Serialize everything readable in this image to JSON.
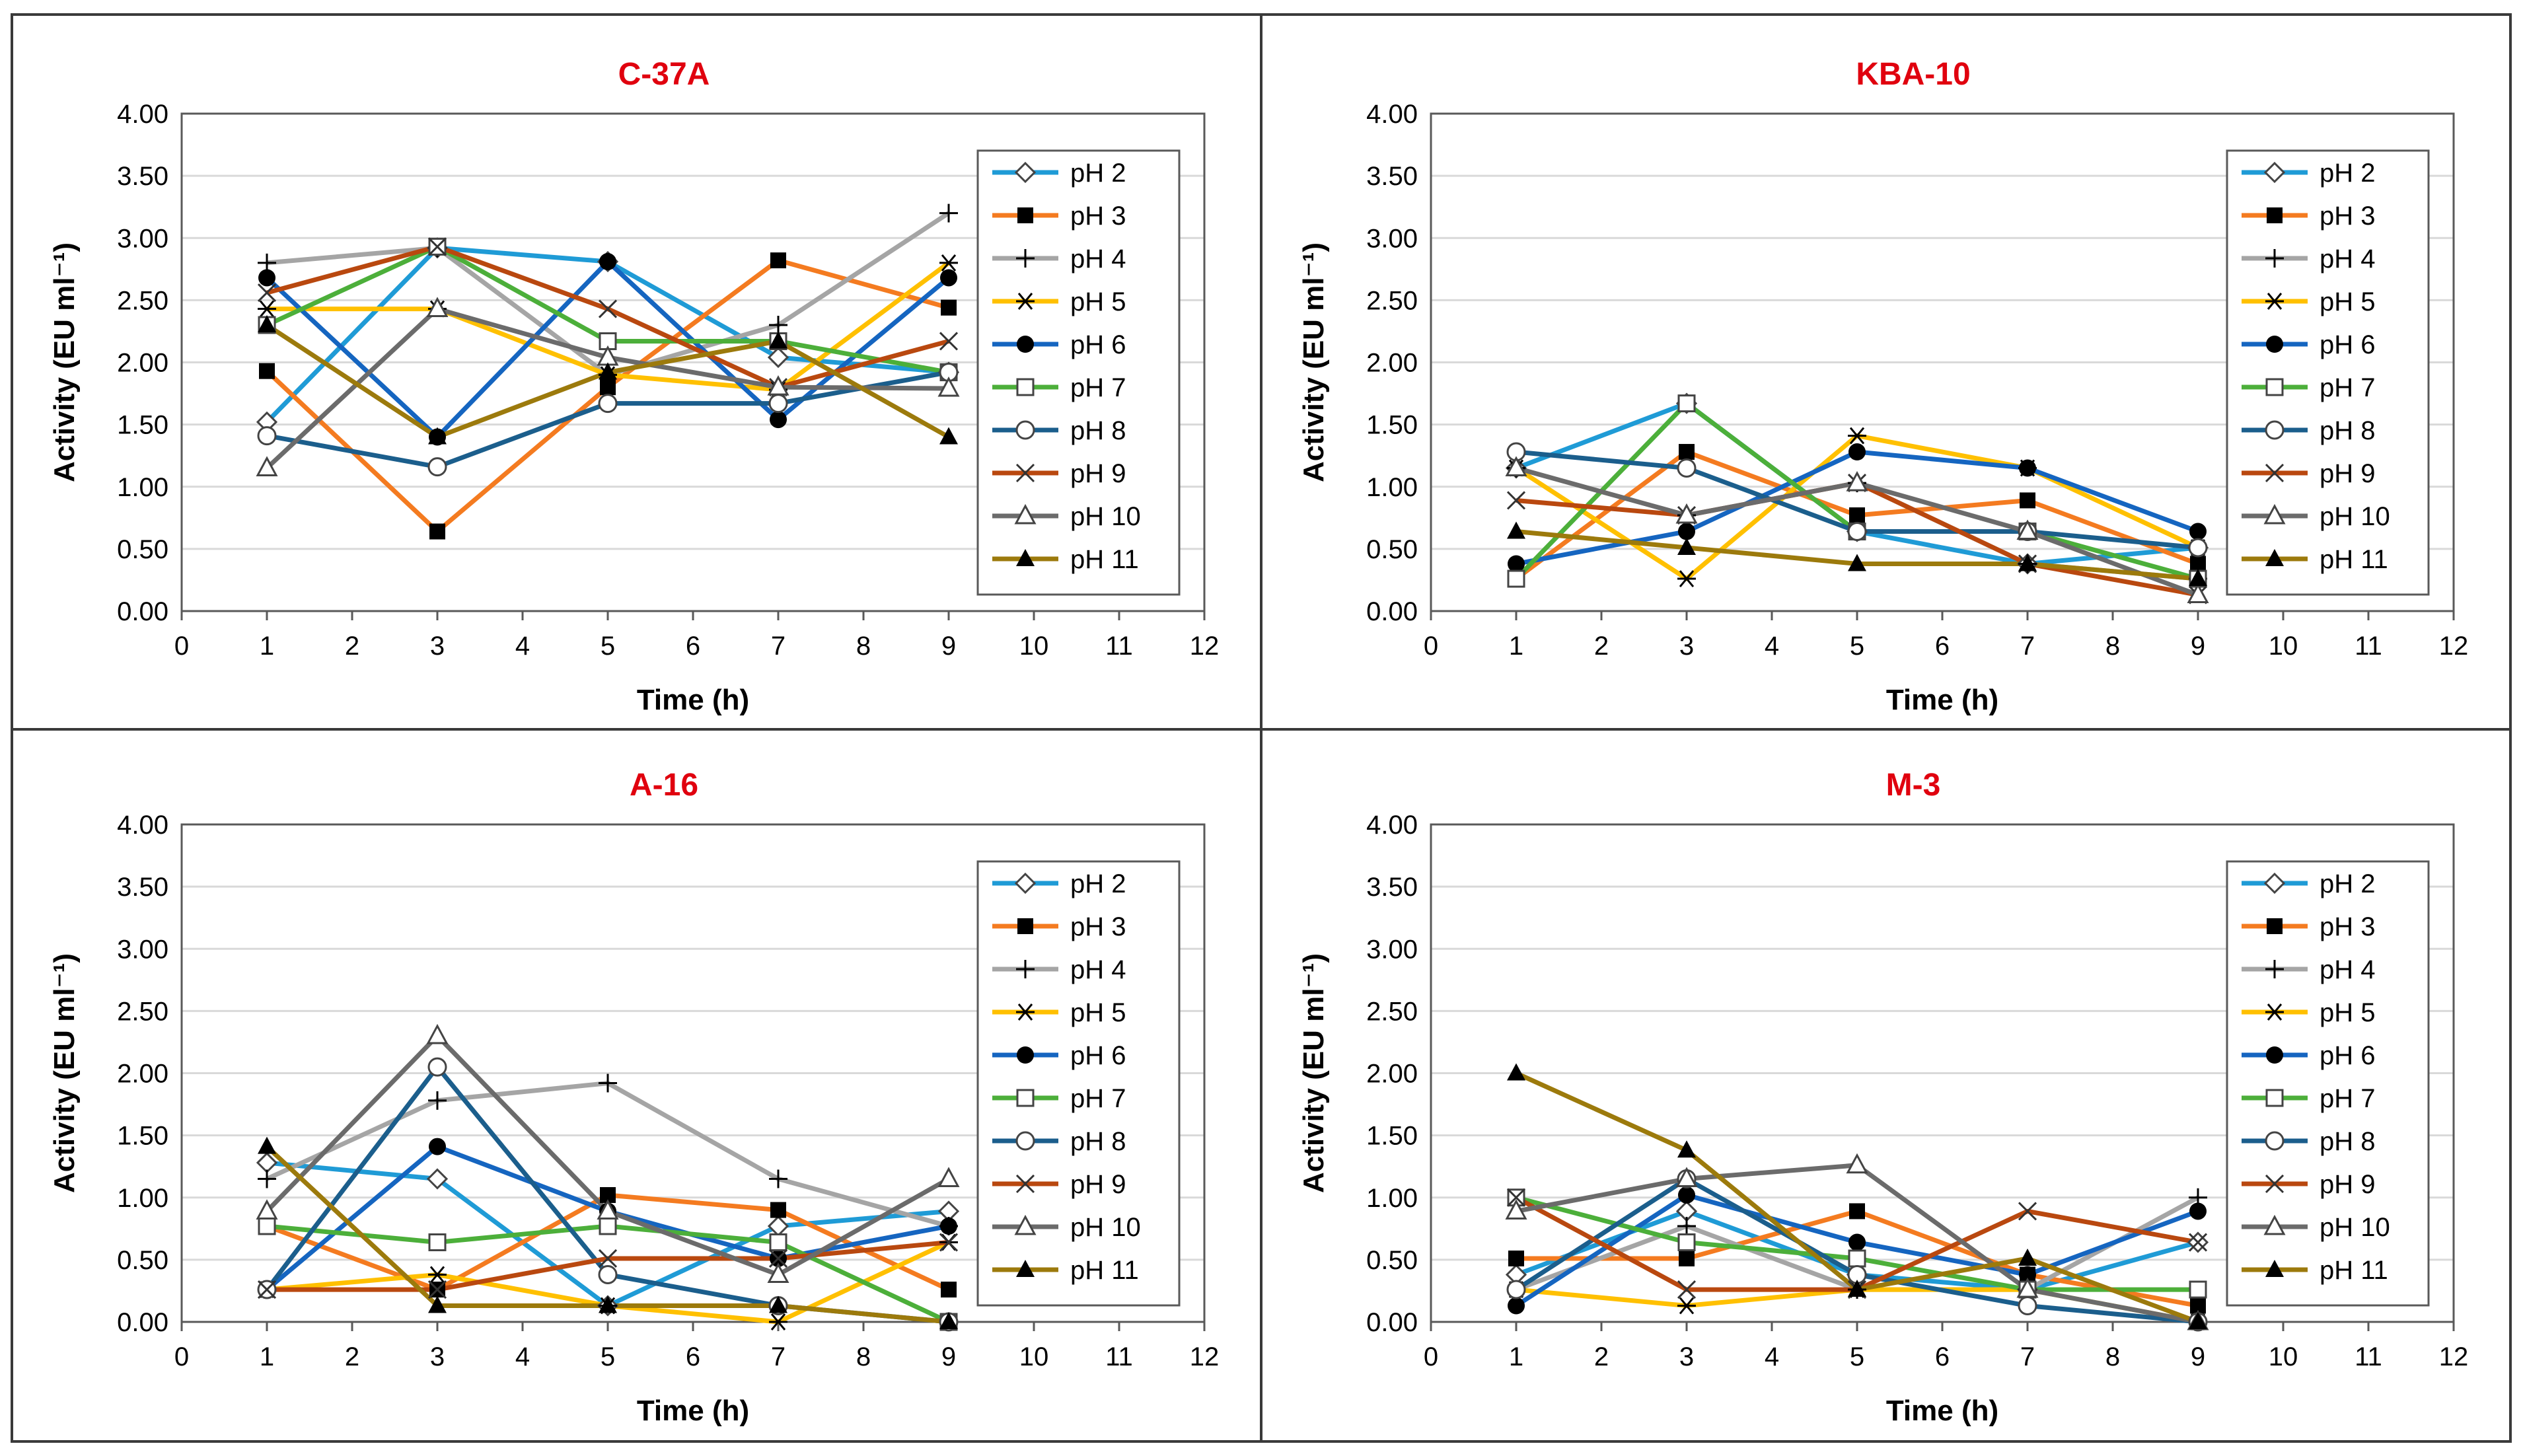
{
  "chart_data": [
    {
      "type": "line",
      "title": "C-37A",
      "xlabel": "Time (h)",
      "ylabel": "Activity (EU ml⁻¹)",
      "xlim": [
        0,
        12
      ],
      "ylim": [
        0,
        4
      ],
      "x_ticks": [
        "0",
        "1",
        "2",
        "3",
        "4",
        "5",
        "6",
        "7",
        "8",
        "9",
        "10",
        "11",
        "12"
      ],
      "y_ticks": [
        "0.00",
        "0.50",
        "1.00",
        "1.50",
        "2.00",
        "2.50",
        "3.00",
        "3.50",
        "4.00"
      ],
      "x": [
        1,
        3,
        5,
        7,
        9
      ],
      "legend_position": "right",
      "series": [
        {
          "name": "pH 2",
          "values": [
            1.52,
            2.92,
            2.81,
            2.04,
            1.92
          ]
        },
        {
          "name": "pH 3",
          "values": [
            1.93,
            0.64,
            1.8,
            2.82,
            2.44
          ]
        },
        {
          "name": "pH 4",
          "values": [
            2.8,
            2.92,
            1.9,
            2.3,
            3.2
          ]
        },
        {
          "name": "pH 5",
          "values": [
            2.43,
            2.43,
            1.9,
            1.78,
            2.8
          ]
        },
        {
          "name": "pH 6",
          "values": [
            2.68,
            1.4,
            2.81,
            1.54,
            2.68
          ]
        },
        {
          "name": "pH 7",
          "values": [
            2.3,
            2.93,
            2.17,
            2.17,
            1.92
          ]
        },
        {
          "name": "pH 8",
          "values": [
            1.41,
            1.16,
            1.67,
            1.67,
            1.92
          ]
        },
        {
          "name": "pH 9",
          "values": [
            2.56,
            2.93,
            2.43,
            1.8,
            2.17
          ]
        },
        {
          "name": "pH 10",
          "values": [
            1.15,
            2.43,
            2.04,
            1.8,
            1.79
          ]
        },
        {
          "name": "pH 11",
          "values": [
            2.3,
            1.4,
            1.92,
            2.17,
            1.4
          ]
        }
      ]
    },
    {
      "type": "line",
      "title": "KBA-10",
      "xlabel": "Time (h)",
      "ylabel": "Activity (EU ml⁻¹)",
      "xlim": [
        0,
        12
      ],
      "ylim": [
        0,
        4
      ],
      "x_ticks": [
        "0",
        "1",
        "2",
        "3",
        "4",
        "5",
        "6",
        "7",
        "8",
        "9",
        "10",
        "11",
        "12"
      ],
      "y_ticks": [
        "0.00",
        "0.50",
        "1.00",
        "1.50",
        "2.00",
        "2.50",
        "3.00",
        "3.50",
        "4.00"
      ],
      "x": [
        1,
        3,
        5,
        7,
        9
      ],
      "legend_position": "right",
      "series": [
        {
          "name": "pH 2",
          "values": [
            1.15,
            1.67,
            0.64,
            0.38,
            0.51
          ]
        },
        {
          "name": "pH 3",
          "values": [
            0.26,
            1.28,
            0.77,
            0.89,
            0.38
          ]
        },
        {
          "name": "pH 4",
          "values": [
            1.15,
            0.77,
            1.03,
            0.38,
            0.26
          ]
        },
        {
          "name": "pH 5",
          "values": [
            1.15,
            0.26,
            1.41,
            1.15,
            0.51
          ]
        },
        {
          "name": "pH 6",
          "values": [
            0.38,
            0.64,
            1.28,
            1.15,
            0.64
          ]
        },
        {
          "name": "pH 7",
          "values": [
            0.26,
            1.67,
            0.64,
            0.64,
            0.26
          ]
        },
        {
          "name": "pH 8",
          "values": [
            1.28,
            1.15,
            0.64,
            0.64,
            0.51
          ]
        },
        {
          "name": "pH 9",
          "values": [
            0.89,
            0.77,
            1.03,
            0.38,
            0.13
          ]
        },
        {
          "name": "pH 10",
          "values": [
            1.15,
            0.77,
            1.03,
            0.64,
            0.13
          ]
        },
        {
          "name": "pH 11",
          "values": [
            0.64,
            0.51,
            0.38,
            0.38,
            0.26
          ]
        }
      ]
    },
    {
      "type": "line",
      "title": "A-16",
      "xlabel": "Time (h)",
      "ylabel": "Activity (EU ml⁻¹)",
      "xlim": [
        0,
        12
      ],
      "ylim": [
        0,
        4
      ],
      "x_ticks": [
        "0",
        "1",
        "2",
        "3",
        "4",
        "5",
        "6",
        "7",
        "8",
        "9",
        "10",
        "11",
        "12"
      ],
      "y_ticks": [
        "0.00",
        "0.50",
        "1.00",
        "1.50",
        "2.00",
        "2.50",
        "3.00",
        "3.50",
        "4.00"
      ],
      "x": [
        1,
        3,
        5,
        7,
        9
      ],
      "legend_position": "right",
      "series": [
        {
          "name": "pH 2",
          "values": [
            1.28,
            1.15,
            0.13,
            0.77,
            0.89
          ]
        },
        {
          "name": "pH 3",
          "values": [
            0.77,
            0.26,
            1.02,
            0.9,
            0.26
          ]
        },
        {
          "name": "pH 4",
          "values": [
            1.15,
            1.78,
            1.92,
            1.15,
            0.77
          ]
        },
        {
          "name": "pH 5",
          "values": [
            0.26,
            0.38,
            0.13,
            0.0,
            0.64
          ]
        },
        {
          "name": "pH 6",
          "values": [
            0.26,
            1.41,
            0.89,
            0.51,
            0.77
          ]
        },
        {
          "name": "pH 7",
          "values": [
            0.77,
            0.64,
            0.77,
            0.64,
            0.0
          ]
        },
        {
          "name": "pH 8",
          "values": [
            0.26,
            2.05,
            0.38,
            0.13,
            0.0
          ]
        },
        {
          "name": "pH 9",
          "values": [
            0.26,
            0.26,
            0.51,
            0.51,
            0.64
          ]
        },
        {
          "name": "pH 10",
          "values": [
            0.89,
            2.3,
            0.89,
            0.38,
            1.15
          ]
        },
        {
          "name": "pH 11",
          "values": [
            1.41,
            0.13,
            0.13,
            0.13,
            0.0
          ]
        }
      ]
    },
    {
      "type": "line",
      "title": "M-3",
      "xlabel": "Time (h)",
      "ylabel": "Activity (EU ml⁻¹)",
      "xlim": [
        0,
        12
      ],
      "ylim": [
        0,
        4
      ],
      "x_ticks": [
        "0",
        "1",
        "2",
        "3",
        "4",
        "5",
        "6",
        "7",
        "8",
        "9",
        "10",
        "11",
        "12"
      ],
      "y_ticks": [
        "0.00",
        "0.50",
        "1.00",
        "1.50",
        "2.00",
        "2.50",
        "3.00",
        "3.50",
        "4.00"
      ],
      "x": [
        1,
        3,
        5,
        7,
        9
      ],
      "legend_position": "right",
      "series": [
        {
          "name": "pH 2",
          "values": [
            0.38,
            0.89,
            0.38,
            0.26,
            0.64
          ]
        },
        {
          "name": "pH 3",
          "values": [
            0.51,
            0.51,
            0.89,
            0.38,
            0.13
          ]
        },
        {
          "name": "pH 4",
          "values": [
            0.26,
            0.77,
            0.26,
            0.26,
            1.0
          ]
        },
        {
          "name": "pH 5",
          "values": [
            0.26,
            0.13,
            0.26,
            0.26,
            0.0
          ]
        },
        {
          "name": "pH 6",
          "values": [
            0.13,
            1.02,
            0.64,
            0.38,
            0.89
          ]
        },
        {
          "name": "pH 7",
          "values": [
            1.0,
            0.64,
            0.51,
            0.26,
            0.26
          ]
        },
        {
          "name": "pH 8",
          "values": [
            0.26,
            1.15,
            0.38,
            0.13,
            0.0
          ]
        },
        {
          "name": "pH 9",
          "values": [
            1.0,
            0.26,
            0.26,
            0.89,
            0.64
          ]
        },
        {
          "name": "pH 10",
          "values": [
            0.89,
            1.15,
            1.26,
            0.26,
            0.0
          ]
        },
        {
          "name": "pH 11",
          "values": [
            2.0,
            1.38,
            0.26,
            0.51,
            0.0
          ]
        }
      ]
    }
  ],
  "series_styles": [
    {
      "color": "#1f9bd6",
      "marker": "diamond-open"
    },
    {
      "color": "#f47b20",
      "marker": "square-filled"
    },
    {
      "color": "#a5a5a5",
      "marker": "plus"
    },
    {
      "color": "#ffc000",
      "marker": "asterisk"
    },
    {
      "color": "#1565c0",
      "marker": "circle-filled"
    },
    {
      "color": "#4caf3a",
      "marker": "square-open"
    },
    {
      "color": "#1b5e8c",
      "marker": "circle-open"
    },
    {
      "color": "#b9480f",
      "marker": "x"
    },
    {
      "color": "#6b6b6b",
      "marker": "triangle-open"
    },
    {
      "color": "#9c7a0c",
      "marker": "triangle-filled"
    }
  ],
  "title_color": "#e0000e"
}
